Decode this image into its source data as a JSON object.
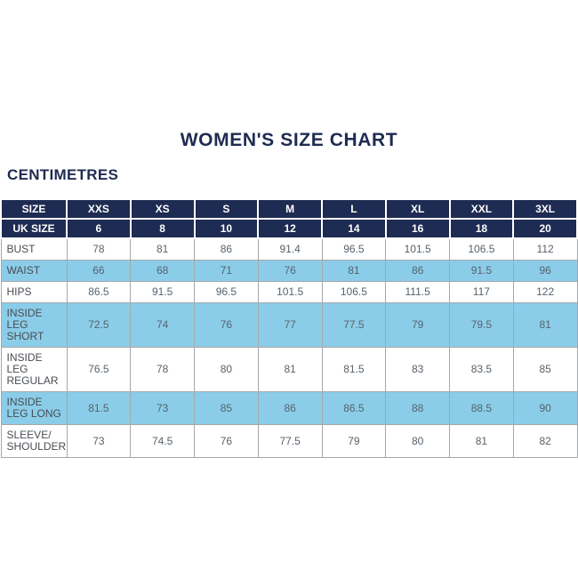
{
  "page": {
    "title": "WOMEN'S SIZE CHART",
    "subtitle": "CENTIMETRES"
  },
  "colors": {
    "navy": "#1e2b52",
    "highlight_blue": "#8bcde9",
    "border_gray": "#a5a7aa",
    "number_text": "#57626c",
    "label_text": "#494d52"
  },
  "chart_data": {
    "type": "table",
    "title": "WOMEN'S SIZE CHART",
    "unit": "CENTIMETRES",
    "header_rows": [
      {
        "label": "SIZE",
        "values": [
          "XXS",
          "XS",
          "S",
          "M",
          "L",
          "XL",
          "XXL",
          "3XL"
        ]
      },
      {
        "label": "UK SIZE",
        "values": [
          "6",
          "8",
          "10",
          "12",
          "14",
          "16",
          "18",
          "20"
        ]
      }
    ],
    "body_rows": [
      {
        "label": "BUST",
        "highlight": false,
        "values": [
          "78",
          "81",
          "86",
          "91.4",
          "96.5",
          "101.5",
          "106.5",
          "112"
        ]
      },
      {
        "label": "WAIST",
        "highlight": true,
        "values": [
          "66",
          "68",
          "71",
          "76",
          "81",
          "86",
          "91.5",
          "96"
        ]
      },
      {
        "label": "HIPS",
        "highlight": false,
        "values": [
          "86.5",
          "91.5",
          "96.5",
          "101.5",
          "106.5",
          "111.5",
          "117",
          "122"
        ]
      },
      {
        "label": "INSIDE LEG SHORT",
        "highlight": true,
        "values": [
          "72.5",
          "74",
          "76",
          "77",
          "77.5",
          "79",
          "79.5",
          "81"
        ]
      },
      {
        "label": "INSIDE LEG REGULAR",
        "highlight": false,
        "values": [
          "76.5",
          "78",
          "80",
          "81",
          "81.5",
          "83",
          "83.5",
          "85"
        ]
      },
      {
        "label": "INSIDE LEG LONG",
        "highlight": true,
        "values": [
          "81.5",
          "73",
          "85",
          "86",
          "86.5",
          "88",
          "88.5",
          "90"
        ]
      },
      {
        "label": "SLEEVE/ SHOULDER",
        "highlight": false,
        "values": [
          "73",
          "74.5",
          "76",
          "77.5",
          "79",
          "80",
          "81",
          "82"
        ]
      }
    ]
  }
}
